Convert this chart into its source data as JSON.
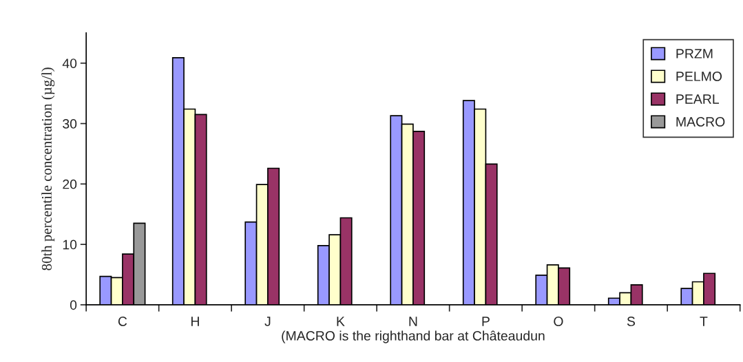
{
  "chart_data": {
    "type": "bar",
    "categories": [
      "C",
      "H",
      "J",
      "K",
      "N",
      "P",
      "O",
      "S",
      "T"
    ],
    "series": [
      {
        "name": "PRZM",
        "color": "#9999ff",
        "values": [
          4.7,
          40.9,
          13.7,
          9.8,
          31.3,
          33.8,
          4.9,
          1.1,
          2.7
        ]
      },
      {
        "name": "PELMO",
        "color": "#ffffcc",
        "values": [
          4.5,
          32.4,
          19.9,
          11.6,
          29.9,
          32.4,
          6.6,
          2.0,
          3.8
        ]
      },
      {
        "name": "PEARL",
        "color": "#993366",
        "values": [
          8.4,
          31.5,
          22.6,
          14.4,
          28.7,
          23.3,
          6.1,
          3.3,
          5.2
        ]
      },
      {
        "name": "MACRO",
        "color": "#999999",
        "values": [
          13.5,
          null,
          null,
          null,
          null,
          null,
          null,
          null,
          null
        ]
      }
    ],
    "ylabel": "80th percentile concentration (µg/l)",
    "xlabel": "(MACRO is the righthand bar at Châteaudun",
    "ylim": [
      0,
      45
    ],
    "yticks": [
      0,
      10,
      20,
      30,
      40
    ],
    "legend": "top right",
    "grid": false
  }
}
